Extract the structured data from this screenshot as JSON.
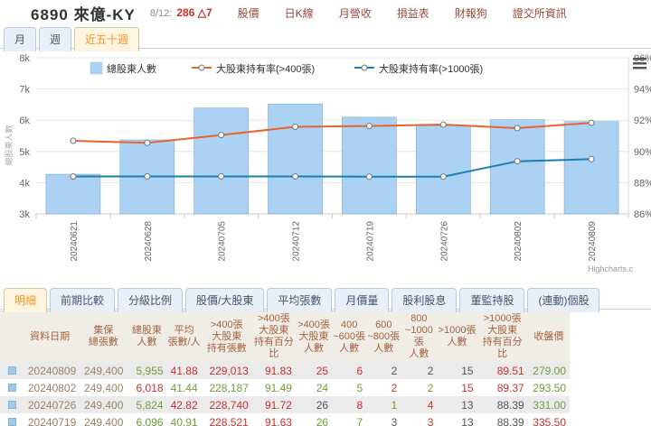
{
  "header": {
    "stock_id": "6890",
    "stock_name": "來億-KY",
    "quote_date": "8/12:",
    "quote_price": "286",
    "quote_change": "△7",
    "menu": [
      "股價",
      "日K線",
      "月營收",
      "損益表",
      "財報狗",
      "證交所資訊"
    ]
  },
  "period_tabs": [
    {
      "label": "月",
      "active": false
    },
    {
      "label": "週",
      "active": false
    },
    {
      "label": "近五十週",
      "active": true
    }
  ],
  "chart_data": {
    "type": "bar+line combo",
    "categories": [
      "20240621",
      "20240628",
      "20240705",
      "20240712",
      "20240719",
      "20240726",
      "20240802",
      "20240809"
    ],
    "series": [
      {
        "name": "總股東人數",
        "type": "bar",
        "axis": "left",
        "values": [
          4270,
          5370,
          6390,
          6520,
          6096,
          5824,
          6018,
          5955
        ],
        "color": "#abd2f2",
        "border_color": "#7aa6cc"
      },
      {
        "name": "大股東持有率(>400張)",
        "type": "line",
        "axis": "right",
        "values": [
          90.68,
          90.55,
          91.05,
          91.58,
          91.63,
          91.72,
          91.49,
          91.83
        ],
        "color": "#e8642e"
      },
      {
        "name": "大股東持有率(>1000張)",
        "type": "line",
        "axis": "right",
        "values": [
          88.4,
          88.4,
          88.4,
          88.4,
          88.39,
          88.39,
          89.37,
          89.51
        ],
        "color": "#1a7fae"
      }
    ],
    "left_axis": {
      "title": "總股東人數",
      "min": 3000,
      "max": 8000,
      "ticks": [
        "8k",
        "7k",
        "6k",
        "5k",
        "4k",
        "3k"
      ]
    },
    "right_axis": {
      "min": 86,
      "max": 96,
      "ticks": [
        "96%",
        "94%",
        "92%",
        "90%",
        "88%",
        "86%"
      ]
    },
    "grid": true,
    "legend_position": "top",
    "credit": "Highcharts.c"
  },
  "detail_tabs": [
    {
      "label": "明細",
      "active": true
    },
    {
      "label": "前期比較",
      "active": false
    },
    {
      "label": "分級比例",
      "active": false
    },
    {
      "label": "股價/大股東",
      "active": false
    },
    {
      "label": "平均張數",
      "active": false
    },
    {
      "label": "月價量",
      "active": false
    },
    {
      "label": "股利股息",
      "active": false
    },
    {
      "label": "董監持股",
      "active": false
    },
    {
      "label": "(連動)個股",
      "active": false
    }
  ],
  "table": {
    "headers": [
      "資料日期",
      "集保\n總張數",
      "總股東\n人數",
      "平均\n張數/人",
      ">400張\n大股東\n持有張數",
      ">400張\n大股東\n持有百分比",
      ">400張\n大股東\n人數",
      "400\n~600張\n人數",
      "600\n~800張\n人數",
      "800\n~1000張\n人數",
      ">1000張\n人數",
      ">1000張\n大股東\n持有百分比",
      "收盤價"
    ],
    "rows": [
      {
        "cells": [
          {
            "v": "20240809",
            "c": "plain"
          },
          {
            "v": "249,400",
            "c": "plain"
          },
          {
            "v": "5,955",
            "c": "green"
          },
          {
            "v": "41.88",
            "c": "red"
          },
          {
            "v": "229,013",
            "c": "red"
          },
          {
            "v": "91.83",
            "c": "red"
          },
          {
            "v": "25",
            "c": "red"
          },
          {
            "v": "6",
            "c": "red"
          },
          {
            "v": "2",
            "c": "dark"
          },
          {
            "v": "2",
            "c": "dark"
          },
          {
            "v": "15",
            "c": "dark"
          },
          {
            "v": "89.51",
            "c": "red"
          },
          {
            "v": "279.00",
            "c": "green"
          }
        ]
      },
      {
        "cells": [
          {
            "v": "20240802",
            "c": "plain"
          },
          {
            "v": "249,400",
            "c": "plain"
          },
          {
            "v": "6,018",
            "c": "red"
          },
          {
            "v": "41.44",
            "c": "green"
          },
          {
            "v": "228,187",
            "c": "green"
          },
          {
            "v": "91.49",
            "c": "green"
          },
          {
            "v": "24",
            "c": "green"
          },
          {
            "v": "5",
            "c": "green"
          },
          {
            "v": "2",
            "c": "red"
          },
          {
            "v": "2",
            "c": "green"
          },
          {
            "v": "15",
            "c": "red"
          },
          {
            "v": "89.37",
            "c": "red"
          },
          {
            "v": "293.50",
            "c": "green"
          }
        ]
      },
      {
        "cells": [
          {
            "v": "20240726",
            "c": "plain"
          },
          {
            "v": "249,400",
            "c": "plain"
          },
          {
            "v": "5,824",
            "c": "green"
          },
          {
            "v": "42.82",
            "c": "red"
          },
          {
            "v": "228,740",
            "c": "red"
          },
          {
            "v": "91.72",
            "c": "red"
          },
          {
            "v": "26",
            "c": "dark"
          },
          {
            "v": "8",
            "c": "red"
          },
          {
            "v": "1",
            "c": "green"
          },
          {
            "v": "4",
            "c": "red"
          },
          {
            "v": "13",
            "c": "dark"
          },
          {
            "v": "88.39",
            "c": "dark"
          },
          {
            "v": "331.00",
            "c": "green"
          }
        ]
      },
      {
        "cells": [
          {
            "v": "20240719",
            "c": "plain"
          },
          {
            "v": "249,400",
            "c": "plain"
          },
          {
            "v": "6,096",
            "c": "green"
          },
          {
            "v": "40.91",
            "c": "green"
          },
          {
            "v": "228,521",
            "c": "red"
          },
          {
            "v": "91.63",
            "c": "red"
          },
          {
            "v": "26",
            "c": "green"
          },
          {
            "v": "7",
            "c": "green"
          },
          {
            "v": "3",
            "c": "dark"
          },
          {
            "v": "3",
            "c": "red"
          },
          {
            "v": "13",
            "c": "dark"
          },
          {
            "v": "88.39",
            "c": "dark"
          },
          {
            "v": "335.50",
            "c": "red"
          }
        ]
      }
    ]
  }
}
